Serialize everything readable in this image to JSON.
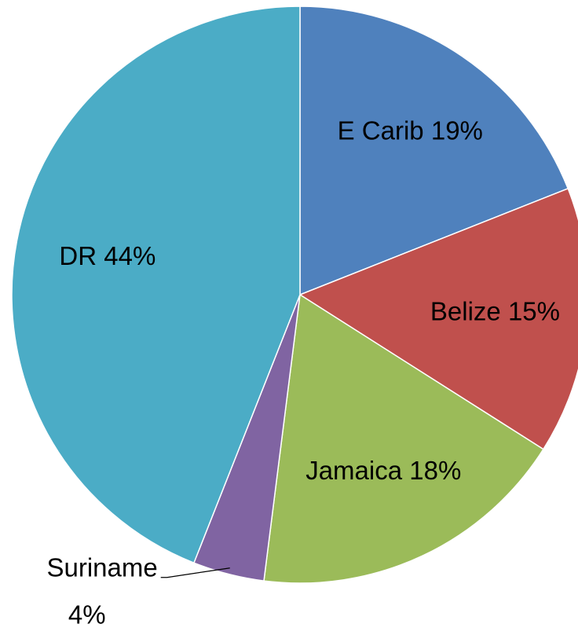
{
  "chart_data": {
    "type": "pie",
    "categories": [
      "E Carib",
      "Belize",
      "Jamaica",
      "Suriname",
      "DR"
    ],
    "values": [
      19,
      15,
      18,
      4,
      44
    ],
    "value_labels": [
      "19%",
      "15%",
      "18%",
      "4%",
      "44%"
    ],
    "colors": [
      "#4f81bd",
      "#c0504d",
      "#9bbb59",
      "#8064a2",
      "#4bacc6"
    ]
  }
}
